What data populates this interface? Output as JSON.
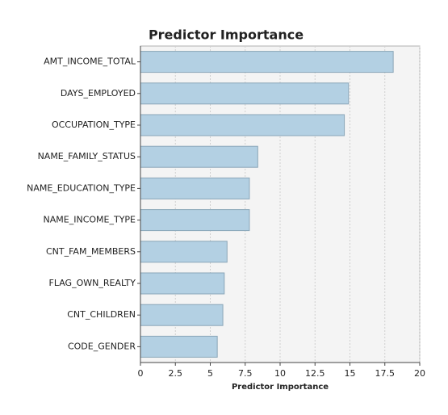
{
  "chart_data": {
    "type": "barh",
    "title": "Predictor Importance",
    "xlabel": "Predictor Importance",
    "categories": [
      "AMT_INCOME_TOTAL",
      "DAYS_EMPLOYED",
      "OCCUPATION_TYPE",
      "NAME_FAMILY_STATUS",
      "NAME_EDUCATION_TYPE",
      "NAME_INCOME_TYPE",
      "CNT_FAM_MEMBERS",
      "FLAG_OWN_REALTY",
      "CNT_CHILDREN",
      "CODE_GENDER"
    ],
    "values": [
      18.1,
      14.9,
      14.6,
      8.4,
      7.8,
      7.8,
      6.2,
      6.0,
      5.9,
      5.5
    ],
    "color": "#b3d0e3",
    "xlim": [
      0,
      20
    ],
    "xticks": [
      0,
      2.5,
      5,
      7.5,
      10,
      12.5,
      15,
      17.5,
      20
    ],
    "grid": true
  }
}
